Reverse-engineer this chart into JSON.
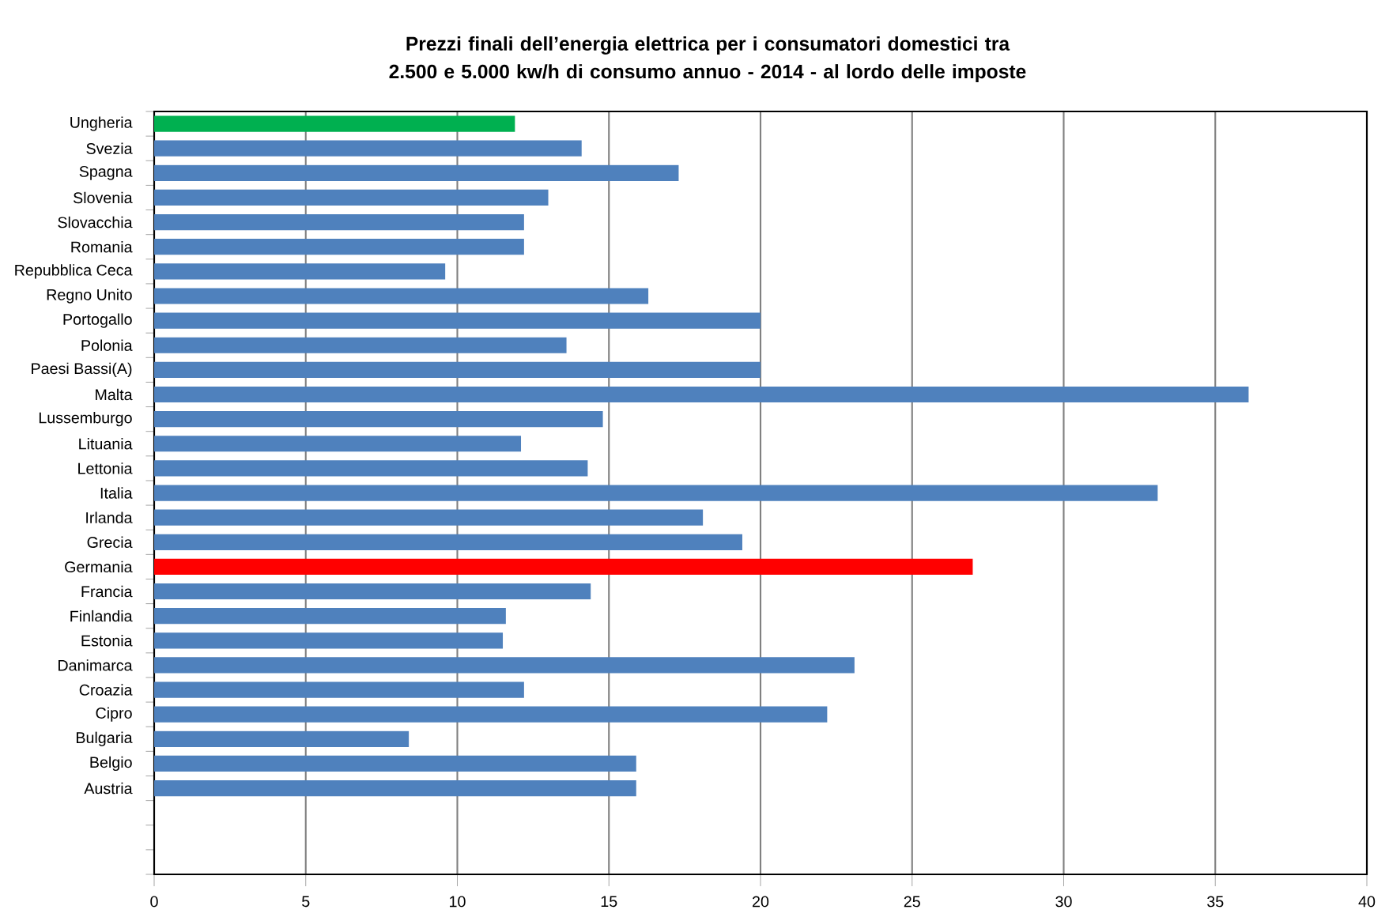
{
  "chart_data": {
    "type": "bar",
    "orientation": "horizontal",
    "title": "Prezzi finali dell’energia elettrica per i consumatori domestici tra 2.500 e 5.000 kw/h di consumo annuo - 2014 - al lordo delle imposte",
    "categories": [
      "Ungheria",
      "Svezia",
      "Spagna",
      "Slovenia",
      "Slovacchia",
      "Romania",
      "Repubblica Ceca",
      "Regno Unito",
      "Portogallo",
      "Polonia",
      "Paesi Bassi(A)",
      "Malta",
      "Lussemburgo",
      "Lituania",
      "Lettonia",
      "Italia",
      "Irlanda",
      "Grecia",
      "Germania",
      "Francia",
      "Finlandia",
      "Estonia",
      "Danimarca",
      "Croazia",
      "Cipro",
      "Bulgaria",
      "Belgio",
      "Austria",
      null,
      null,
      null
    ],
    "values": [
      11.9,
      14.1,
      17.3,
      13.0,
      12.2,
      12.2,
      9.6,
      16.3,
      20.0,
      13.6,
      20.0,
      36.1,
      14.8,
      12.1,
      14.3,
      33.1,
      18.1,
      19.4,
      27.0,
      14.4,
      11.6,
      11.5,
      23.1,
      12.2,
      22.2,
      8.4,
      15.9,
      15.9,
      null,
      null,
      null
    ],
    "colors": [
      "#00b050",
      "#4f81bd",
      "#4f81bd",
      "#4f81bd",
      "#4f81bd",
      "#4f81bd",
      "#4f81bd",
      "#4f81bd",
      "#4f81bd",
      "#4f81bd",
      "#4f81bd",
      "#4f81bd",
      "#4f81bd",
      "#4f81bd",
      "#4f81bd",
      "#4f81bd",
      "#4f81bd",
      "#4f81bd",
      "#ff0000",
      "#4f81bd",
      "#4f81bd",
      "#4f81bd",
      "#4f81bd",
      "#4f81bd",
      "#4f81bd",
      "#4f81bd",
      "#4f81bd",
      "#4f81bd",
      "#4f81bd",
      "#4f81bd",
      "#4f81bd"
    ],
    "xlim": [
      0,
      40
    ],
    "xticks": [
      0,
      5,
      10,
      15,
      20,
      25,
      30,
      35,
      40
    ],
    "grid": "x"
  }
}
